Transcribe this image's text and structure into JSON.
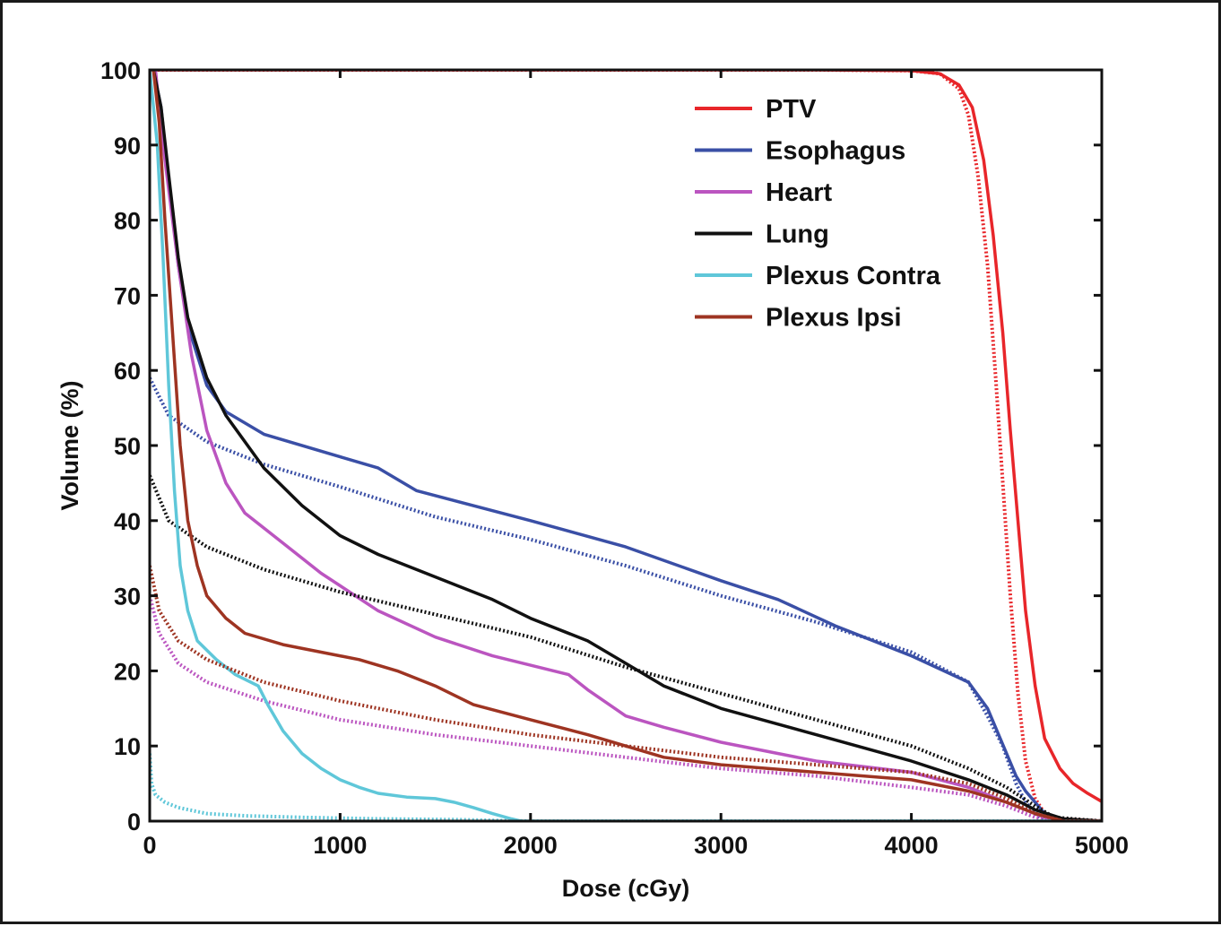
{
  "chart_data": {
    "type": "line",
    "title": "",
    "xlabel": "Dose (cGy)",
    "ylabel": "Volume (%)",
    "xlim": [
      0,
      5000
    ],
    "ylim": [
      0,
      100
    ],
    "xticks": [
      0,
      1000,
      2000,
      3000,
      4000,
      5000
    ],
    "yticks": [
      0,
      10,
      20,
      30,
      40,
      50,
      60,
      70,
      80,
      90,
      100
    ],
    "grid": false,
    "legend_position": "top-right",
    "series": [
      {
        "name": "PTV",
        "color": "#e8262a",
        "style": "solid",
        "points": [
          [
            0,
            100
          ],
          [
            1000,
            100
          ],
          [
            2000,
            100
          ],
          [
            3000,
            100
          ],
          [
            3500,
            100
          ],
          [
            4000,
            99.9
          ],
          [
            4150,
            99.5
          ],
          [
            4250,
            98
          ],
          [
            4320,
            95
          ],
          [
            4380,
            88
          ],
          [
            4430,
            78
          ],
          [
            4480,
            65
          ],
          [
            4520,
            52
          ],
          [
            4560,
            40
          ],
          [
            4600,
            28
          ],
          [
            4650,
            18
          ],
          [
            4700,
            11
          ],
          [
            4780,
            7
          ],
          [
            4850,
            5
          ],
          [
            4920,
            3.8
          ],
          [
            5000,
            2.6
          ]
        ]
      },
      {
        "name": "PTV",
        "color": "#e8262a",
        "style": "dotted",
        "points": [
          [
            0,
            100
          ],
          [
            1000,
            100
          ],
          [
            2000,
            100
          ],
          [
            3000,
            100
          ],
          [
            3500,
            100
          ],
          [
            4000,
            99.9
          ],
          [
            4150,
            99.5
          ],
          [
            4250,
            97.5
          ],
          [
            4300,
            94
          ],
          [
            4350,
            86
          ],
          [
            4400,
            74
          ],
          [
            4440,
            60
          ],
          [
            4480,
            45
          ],
          [
            4520,
            30
          ],
          [
            4560,
            17
          ],
          [
            4600,
            8
          ],
          [
            4650,
            3
          ],
          [
            4700,
            1
          ],
          [
            4780,
            0.3
          ],
          [
            5000,
            0
          ]
        ]
      },
      {
        "name": "Esophagus",
        "color": "#3a4fa6",
        "style": "solid",
        "points": [
          [
            20,
            100
          ],
          [
            60,
            95
          ],
          [
            100,
            85
          ],
          [
            150,
            74
          ],
          [
            200,
            66
          ],
          [
            300,
            58
          ],
          [
            400,
            54.5
          ],
          [
            600,
            51.5
          ],
          [
            1000,
            48.5
          ],
          [
            1200,
            47
          ],
          [
            1400,
            44
          ],
          [
            2000,
            40
          ],
          [
            2500,
            36.5
          ],
          [
            3000,
            32
          ],
          [
            3300,
            29.5
          ],
          [
            3600,
            26
          ],
          [
            4000,
            22
          ],
          [
            4300,
            18.5
          ],
          [
            4400,
            15
          ],
          [
            4450,
            12
          ],
          [
            4500,
            9
          ],
          [
            4550,
            6
          ],
          [
            4600,
            4
          ],
          [
            4650,
            2.5
          ],
          [
            4700,
            1
          ],
          [
            4780,
            0
          ],
          [
            5000,
            0
          ]
        ]
      },
      {
        "name": "Esophagus",
        "color": "#3a4fa6",
        "style": "dotted",
        "points": [
          [
            0,
            59
          ],
          [
            100,
            54
          ],
          [
            300,
            50.5
          ],
          [
            600,
            47.5
          ],
          [
            1000,
            44.5
          ],
          [
            1500,
            40.5
          ],
          [
            2000,
            37.5
          ],
          [
            2500,
            34
          ],
          [
            3000,
            30
          ],
          [
            3500,
            26.5
          ],
          [
            4000,
            22.5
          ],
          [
            4300,
            18.5
          ],
          [
            4400,
            14
          ],
          [
            4480,
            10
          ],
          [
            4550,
            5
          ],
          [
            4600,
            2.5
          ],
          [
            4650,
            1
          ],
          [
            4700,
            0
          ],
          [
            5000,
            0
          ]
        ]
      },
      {
        "name": "Heart",
        "color": "#bb55c0",
        "style": "solid",
        "points": [
          [
            30,
            100
          ],
          [
            80,
            88
          ],
          [
            150,
            74
          ],
          [
            220,
            62
          ],
          [
            300,
            52
          ],
          [
            400,
            45
          ],
          [
            500,
            41
          ],
          [
            700,
            37
          ],
          [
            900,
            33
          ],
          [
            1200,
            28
          ],
          [
            1500,
            24.5
          ],
          [
            1800,
            22
          ],
          [
            2200,
            19.5
          ],
          [
            2300,
            17.5
          ],
          [
            2500,
            14
          ],
          [
            2700,
            12.5
          ],
          [
            3000,
            10.5
          ],
          [
            3500,
            8
          ],
          [
            4000,
            6.5
          ],
          [
            4300,
            4.5
          ],
          [
            4500,
            2.5
          ],
          [
            4700,
            0.5
          ],
          [
            4800,
            0
          ],
          [
            5000,
            0
          ]
        ]
      },
      {
        "name": "Heart",
        "color": "#bb55c0",
        "style": "dotted",
        "points": [
          [
            0,
            30
          ],
          [
            50,
            25
          ],
          [
            150,
            21
          ],
          [
            300,
            18.5
          ],
          [
            600,
            16
          ],
          [
            1000,
            13.5
          ],
          [
            1500,
            11.5
          ],
          [
            2000,
            10
          ],
          [
            2500,
            8.5
          ],
          [
            3000,
            7
          ],
          [
            3500,
            6
          ],
          [
            4000,
            4.5
          ],
          [
            4300,
            3.5
          ],
          [
            4500,
            2
          ],
          [
            4650,
            0.5
          ],
          [
            4800,
            0
          ],
          [
            5000,
            0
          ]
        ]
      },
      {
        "name": "Lung",
        "color": "#111111",
        "style": "solid",
        "points": [
          [
            20,
            100
          ],
          [
            60,
            95
          ],
          [
            100,
            86
          ],
          [
            150,
            75
          ],
          [
            200,
            67
          ],
          [
            300,
            59
          ],
          [
            400,
            54
          ],
          [
            600,
            47
          ],
          [
            800,
            42
          ],
          [
            1000,
            38
          ],
          [
            1200,
            35.5
          ],
          [
            1500,
            32.5
          ],
          [
            1800,
            29.5
          ],
          [
            2000,
            27
          ],
          [
            2300,
            24
          ],
          [
            2500,
            21
          ],
          [
            2700,
            18
          ],
          [
            3000,
            15
          ],
          [
            3500,
            11.5
          ],
          [
            4000,
            8
          ],
          [
            4300,
            5.5
          ],
          [
            4500,
            3.5
          ],
          [
            4650,
            1.5
          ],
          [
            4800,
            0.3
          ],
          [
            5000,
            0
          ]
        ]
      },
      {
        "name": "Lung",
        "color": "#111111",
        "style": "dotted",
        "points": [
          [
            0,
            46
          ],
          [
            100,
            40
          ],
          [
            300,
            36.5
          ],
          [
            600,
            33.5
          ],
          [
            1000,
            30.5
          ],
          [
            1500,
            27.5
          ],
          [
            2000,
            24.5
          ],
          [
            2500,
            20.5
          ],
          [
            3000,
            17
          ],
          [
            3500,
            13.5
          ],
          [
            4000,
            10
          ],
          [
            4300,
            7
          ],
          [
            4500,
            4.5
          ],
          [
            4650,
            2
          ],
          [
            4750,
            0.5
          ],
          [
            5000,
            0
          ]
        ]
      },
      {
        "name": "Plexus Contra",
        "color": "#5fc7d9",
        "style": "solid",
        "points": [
          [
            0,
            100
          ],
          [
            40,
            90
          ],
          [
            70,
            75
          ],
          [
            100,
            58
          ],
          [
            130,
            44
          ],
          [
            160,
            34
          ],
          [
            200,
            28
          ],
          [
            250,
            24
          ],
          [
            350,
            21.5
          ],
          [
            450,
            19.5
          ],
          [
            570,
            18
          ],
          [
            620,
            15.5
          ],
          [
            700,
            12
          ],
          [
            800,
            9
          ],
          [
            900,
            7
          ],
          [
            1000,
            5.5
          ],
          [
            1100,
            4.5
          ],
          [
            1200,
            3.7
          ],
          [
            1350,
            3.2
          ],
          [
            1500,
            3
          ],
          [
            1600,
            2.5
          ],
          [
            1700,
            1.8
          ],
          [
            1800,
            1
          ],
          [
            1900,
            0.3
          ],
          [
            1950,
            0
          ],
          [
            5000,
            0
          ]
        ]
      },
      {
        "name": "Plexus Contra",
        "color": "#5fc7d9",
        "style": "dotted",
        "points": [
          [
            0,
            9
          ],
          [
            10,
            5
          ],
          [
            30,
            3.5
          ],
          [
            80,
            2.5
          ],
          [
            150,
            1.8
          ],
          [
            300,
            1
          ],
          [
            500,
            0.7
          ],
          [
            800,
            0.5
          ],
          [
            1200,
            0.3
          ],
          [
            1600,
            0.2
          ],
          [
            2000,
            0
          ],
          [
            5000,
            0
          ]
        ]
      },
      {
        "name": "Plexus Ipsi",
        "color": "#9e3422",
        "style": "solid",
        "points": [
          [
            20,
            100
          ],
          [
            50,
            93
          ],
          [
            80,
            80
          ],
          [
            120,
            65
          ],
          [
            160,
            50
          ],
          [
            200,
            40
          ],
          [
            250,
            34
          ],
          [
            300,
            30
          ],
          [
            400,
            27
          ],
          [
            500,
            25
          ],
          [
            700,
            23.5
          ],
          [
            900,
            22.5
          ],
          [
            1100,
            21.5
          ],
          [
            1300,
            20
          ],
          [
            1500,
            18
          ],
          [
            1700,
            15.5
          ],
          [
            2000,
            13.5
          ],
          [
            2300,
            11.5
          ],
          [
            2500,
            10
          ],
          [
            2700,
            8.5
          ],
          [
            3000,
            7.5
          ],
          [
            3500,
            6.5
          ],
          [
            4000,
            5.5
          ],
          [
            4300,
            4
          ],
          [
            4500,
            2.5
          ],
          [
            4650,
            1
          ],
          [
            4800,
            0
          ],
          [
            5000,
            0
          ]
        ]
      },
      {
        "name": "Plexus Ipsi",
        "color": "#9e3422",
        "style": "dotted",
        "points": [
          [
            0,
            34
          ],
          [
            50,
            28
          ],
          [
            150,
            24
          ],
          [
            300,
            21.5
          ],
          [
            600,
            18.5
          ],
          [
            1000,
            16
          ],
          [
            1500,
            13.5
          ],
          [
            2000,
            11.5
          ],
          [
            2500,
            10
          ],
          [
            3000,
            8.5
          ],
          [
            3500,
            7.5
          ],
          [
            4000,
            6.5
          ],
          [
            4300,
            5
          ],
          [
            4500,
            3
          ],
          [
            4650,
            1
          ],
          [
            4800,
            0
          ],
          [
            5000,
            0
          ]
        ]
      }
    ],
    "legend": [
      {
        "label": "PTV",
        "color": "#e8262a"
      },
      {
        "label": "Esophagus",
        "color": "#3a4fa6"
      },
      {
        "label": "Heart",
        "color": "#bb55c0"
      },
      {
        "label": "Lung",
        "color": "#111111"
      },
      {
        "label": "Plexus Contra",
        "color": "#5fc7d9"
      },
      {
        "label": "Plexus Ipsi",
        "color": "#9e3422"
      }
    ]
  }
}
